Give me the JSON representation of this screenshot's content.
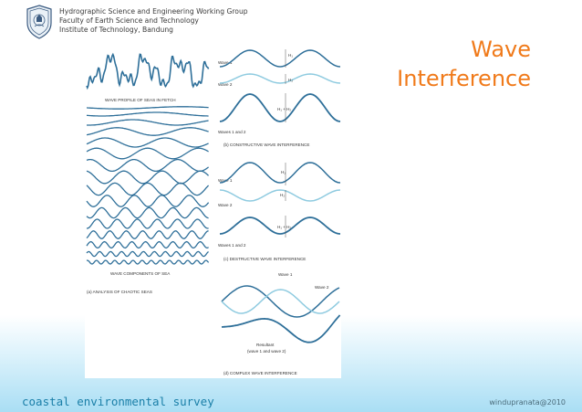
{
  "header": {
    "line1": "Hydrographic Science and Engineering Working Group",
    "line2": "Faculty of Earth Science and Technology",
    "line3": "Institute of Technology, Bandung"
  },
  "title": {
    "line1": "Wave",
    "line2": "Interference"
  },
  "figure": {
    "left": {
      "profile_label": "WAVE PROFILE OF SEAS IN FETCH",
      "components_label": "WAVE COMPONENTS OF SEA",
      "caption": "(a) ANALYSIS OF CHAOTIC SEAS"
    },
    "constructive": {
      "wave1": "Wave 1",
      "wave2": "Wave 2",
      "h1": "H₁",
      "h2": "H₂",
      "hsum": "H₁ + H₂",
      "waves12": "Waves 1 and 2",
      "caption": "(b) CONSTRUCTIVE WAVE INTERFERENCE"
    },
    "destructive": {
      "wave1": "Wave 1",
      "wave2": "Wave 2",
      "h1": "H₁",
      "h2": "H₂",
      "hsum": "H₁ + H₂",
      "waves12": "Waves 1 and 2",
      "caption": "(c) DESTRUCTIVE WAVE INTERFERENCE"
    },
    "complex": {
      "wave1": "Wave 1",
      "wave2": "Wave 2",
      "resultant1": "Resultant",
      "resultant2": "(wave 1 and wave 2)",
      "caption": "(d) COMPLEX WAVE INTERFERENCE"
    }
  },
  "footer": {
    "left": "coastal environmental survey",
    "right": "windupranata@2010"
  },
  "colors": {
    "accent_title": "#f07a1a",
    "wave_dark": "#2e6f99",
    "wave_light": "#8fcbe0",
    "footer_text": "#1a7fa8"
  }
}
